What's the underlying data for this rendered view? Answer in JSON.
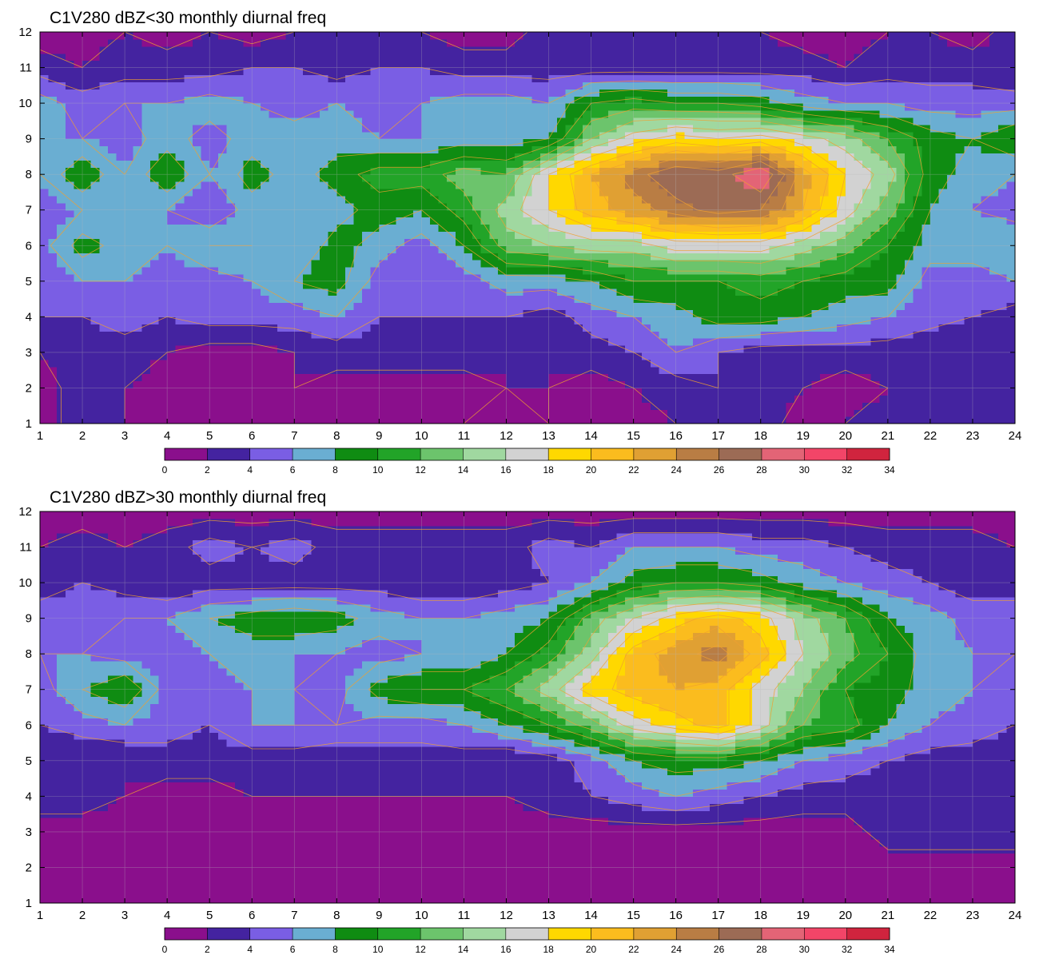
{
  "colors": {
    "levels": [
      "#8a0f8c",
      "#4423a0",
      "#7a5ee4",
      "#6aaed2",
      "#0f8c12",
      "#22a428",
      "#6cc46c",
      "#a0d8a0",
      "#d2d2d2",
      "#ffd800",
      "#fbbc1e",
      "#e0a033",
      "#b97d44",
      "#9c6b55",
      "#e36476",
      "#f24568",
      "#d0243e"
    ],
    "contour_line": "#f0a030",
    "grid": "#b8b8b8"
  },
  "chart_data": [
    {
      "type": "heatmap",
      "title": "C1V280 dBZ<30 monthly diurnal freq",
      "xlim": [
        1,
        24
      ],
      "ylim": [
        1,
        12
      ],
      "x_ticks": [
        "1",
        "2",
        "3",
        "4",
        "5",
        "6",
        "7",
        "8",
        "9",
        "10",
        "11",
        "12",
        "13",
        "14",
        "15",
        "16",
        "17",
        "18",
        "19",
        "20",
        "21",
        "22",
        "23",
        "24"
      ],
      "y_ticks": [
        "1",
        "2",
        "3",
        "4",
        "5",
        "6",
        "7",
        "8",
        "9",
        "10",
        "11",
        "12"
      ],
      "colorbar_ticks": [
        "0",
        "2",
        "4",
        "6",
        "8",
        "10",
        "12",
        "14",
        "16",
        "18",
        "20",
        "22",
        "24",
        "26",
        "28",
        "30",
        "32",
        "34"
      ],
      "values": [
        [
          1,
          3,
          2,
          1,
          1,
          1,
          1,
          1,
          1,
          1,
          2,
          1,
          2,
          1,
          1,
          2,
          3,
          3,
          1,
          2,
          3,
          2,
          2,
          4
        ],
        [
          1,
          3,
          2,
          1,
          1,
          1,
          2,
          1,
          1,
          1,
          1,
          2,
          2,
          1,
          2,
          3,
          4,
          3,
          2,
          1,
          2,
          2,
          2,
          3
        ],
        [
          2,
          3,
          3,
          2,
          1,
          1,
          2,
          3,
          3,
          3,
          3,
          2,
          2,
          3,
          4,
          6,
          4,
          3,
          3,
          3,
          3,
          2,
          2,
          2
        ],
        [
          4,
          4,
          5,
          4,
          5,
          5,
          5,
          6,
          4,
          4,
          4,
          4,
          3,
          5,
          6,
          7,
          9,
          9,
          8,
          7,
          6,
          5,
          4,
          3
        ],
        [
          4,
          6,
          6,
          5,
          5,
          6,
          8,
          9,
          5,
          4,
          5,
          7,
          7,
          8,
          10,
          10,
          10,
          11,
          10,
          9,
          9,
          5,
          5,
          6
        ],
        [
          5,
          9,
          7,
          6,
          8,
          8,
          6,
          9,
          7,
          5,
          8,
          13,
          14,
          15,
          15,
          17,
          17,
          17,
          15,
          13,
          10,
          7,
          7,
          8
        ],
        [
          5,
          6,
          6,
          6,
          4,
          7,
          6,
          7,
          9,
          8,
          11,
          15,
          18,
          21,
          23,
          25,
          27,
          26,
          22,
          17,
          13,
          8,
          6,
          5
        ],
        [
          6,
          10,
          6,
          10,
          6,
          9,
          7,
          9,
          11,
          11,
          13,
          12,
          18,
          22,
          25,
          28,
          27,
          30,
          23,
          18,
          15,
          9,
          7,
          6
        ],
        [
          6,
          6,
          5,
          7,
          5,
          7,
          7,
          7,
          6,
          6,
          7,
          7,
          8,
          14,
          17,
          19,
          18,
          19,
          17,
          15,
          12,
          9,
          8,
          10
        ],
        [
          7,
          5,
          6,
          6,
          7,
          6,
          5,
          6,
          5,
          6,
          7,
          7,
          6,
          10,
          11,
          10,
          10,
          9,
          7,
          6,
          6,
          5,
          5,
          5
        ],
        [
          3,
          2,
          3,
          3,
          3,
          4,
          4,
          3,
          4,
          4,
          3,
          3,
          3,
          3,
          3,
          3,
          3,
          3,
          3,
          2,
          3,
          3,
          3,
          2
        ],
        [
          1,
          1,
          2,
          1,
          2,
          1,
          2,
          2,
          2,
          2,
          1,
          1,
          3,
          3,
          3,
          3,
          3,
          2,
          1,
          1,
          2,
          2,
          1,
          3
        ]
      ]
    },
    {
      "type": "heatmap",
      "title": "C1V280 dBZ>30 monthly diurnal freq",
      "xlim": [
        1,
        24
      ],
      "ylim": [
        1,
        12
      ],
      "x_ticks": [
        "1",
        "2",
        "3",
        "4",
        "5",
        "6",
        "7",
        "8",
        "9",
        "10",
        "11",
        "12",
        "13",
        "14",
        "15",
        "16",
        "17",
        "18",
        "19",
        "20",
        "21",
        "22",
        "23",
        "24"
      ],
      "y_ticks": [
        "1",
        "2",
        "3",
        "4",
        "5",
        "6",
        "7",
        "8",
        "9",
        "10",
        "11",
        "12"
      ],
      "colorbar_ticks": [
        "0",
        "2",
        "4",
        "6",
        "8",
        "10",
        "12",
        "14",
        "16",
        "18",
        "20",
        "22",
        "24",
        "26",
        "28",
        "30",
        "32",
        "34"
      ],
      "values": [
        [
          1,
          1,
          1,
          1,
          1,
          1,
          1,
          1,
          1,
          1,
          1,
          1,
          1,
          1,
          1,
          1,
          1,
          1,
          1,
          1,
          1,
          1,
          1,
          1
        ],
        [
          1,
          1,
          1,
          1,
          1,
          1,
          1,
          1,
          1,
          1,
          1,
          1,
          1,
          1,
          1,
          1,
          1,
          1,
          1,
          1,
          1,
          1,
          1,
          1
        ],
        [
          1,
          1,
          1,
          1,
          1,
          1,
          1,
          1,
          1,
          1,
          1,
          1,
          1,
          1,
          1,
          1,
          1,
          1,
          1,
          1,
          3,
          3,
          3,
          3
        ],
        [
          3,
          3,
          2,
          1,
          1,
          2,
          2,
          2,
          2,
          2,
          2,
          2,
          3,
          4,
          5,
          6,
          5,
          4,
          3,
          3,
          3,
          3,
          2,
          2
        ],
        [
          2,
          2,
          2,
          3,
          3,
          3,
          3,
          2,
          3,
          3,
          3,
          2,
          3,
          5,
          8,
          9,
          9,
          8,
          6,
          5,
          4,
          3,
          3,
          3
        ],
        [
          4,
          5,
          6,
          5,
          4,
          6,
          6,
          6,
          5,
          5,
          6,
          8,
          10,
          13,
          17,
          19,
          21,
          17,
          12,
          11,
          8,
          6,
          5,
          4
        ],
        [
          5,
          8,
          10,
          5,
          5,
          6,
          6,
          5,
          9,
          10,
          10,
          12,
          15,
          19,
          21,
          22,
          21,
          17,
          14,
          10,
          9,
          7,
          6,
          5
        ],
        [
          6,
          6,
          5,
          5,
          6,
          7,
          6,
          6,
          5,
          6,
          6,
          8,
          11,
          15,
          21,
          23,
          25,
          21,
          16,
          13,
          10,
          7,
          6,
          6
        ],
        [
          5,
          5,
          6,
          6,
          8,
          9,
          10,
          9,
          7,
          6,
          6,
          7,
          8,
          13,
          16,
          19,
          21,
          19,
          15,
          12,
          8,
          7,
          5,
          5
        ],
        [
          3,
          4,
          3,
          2,
          3,
          3,
          3,
          3,
          3,
          2,
          2,
          3,
          4,
          6,
          9,
          10,
          10,
          9,
          7,
          6,
          5,
          4,
          3,
          3
        ],
        [
          2,
          3,
          2,
          3,
          5,
          4,
          5,
          3,
          3,
          3,
          3,
          3,
          5,
          4,
          6,
          6,
          6,
          5,
          5,
          4,
          3,
          3,
          3,
          2
        ],
        [
          1,
          1,
          1,
          1,
          1,
          1,
          1,
          1,
          1,
          1,
          1,
          1,
          1,
          1,
          1,
          1,
          1,
          1,
          1,
          1,
          1,
          1,
          1,
          1
        ]
      ]
    }
  ]
}
